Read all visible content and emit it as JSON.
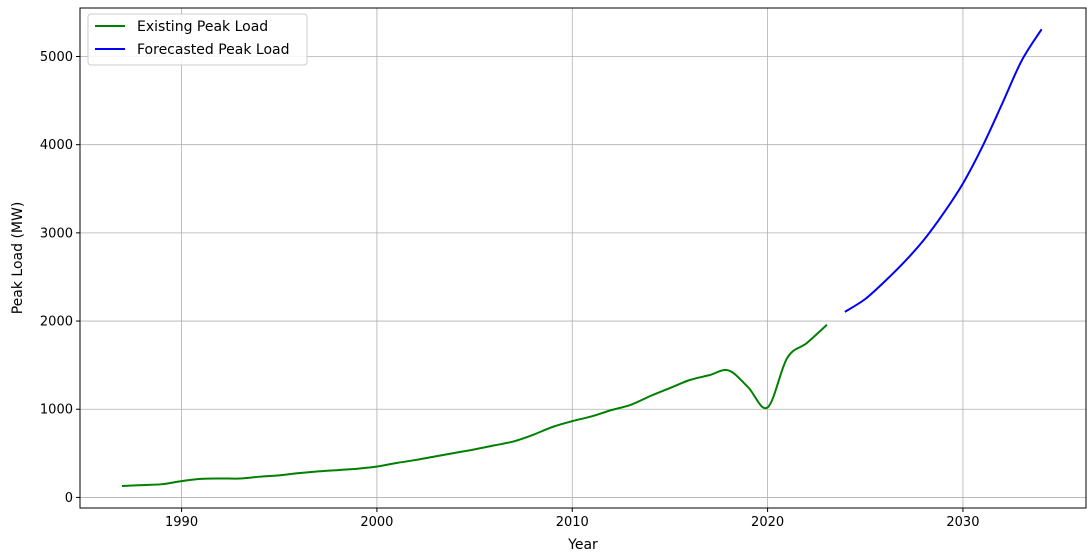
{
  "chart_data": {
    "type": "line",
    "title": "",
    "xlabel": "Year",
    "ylabel": "Peak Load (MW)",
    "xlim": [
      1984.8,
      1036.3
    ],
    "ylim": [
      -120,
      5550
    ],
    "xticks": [
      1990,
      2000,
      2010,
      2020,
      2030
    ],
    "yticks": [
      0,
      1000,
      2000,
      3000,
      4000,
      5000
    ],
    "grid": true,
    "legend_position": "top-left",
    "series": [
      {
        "name": "Existing Peak Load",
        "color": "#008000",
        "x": [
          1987,
          1988,
          1989,
          1990,
          1991,
          1992,
          1993,
          1994,
          1995,
          1996,
          1997,
          1998,
          1999,
          2000,
          2001,
          2002,
          2003,
          2004,
          2005,
          2006,
          2007,
          2008,
          2009,
          2010,
          2011,
          2012,
          2013,
          2014,
          2015,
          2016,
          2017,
          2018,
          2019,
          2020,
          2021,
          2022,
          2023
        ],
        "y": [
          130,
          140,
          150,
          185,
          210,
          215,
          215,
          235,
          250,
          275,
          295,
          310,
          325,
          350,
          390,
          425,
          465,
          505,
          545,
          590,
          635,
          710,
          800,
          865,
          920,
          990,
          1050,
          1150,
          1240,
          1330,
          1385,
          1440,
          1250,
          1020,
          1580,
          1750,
          1950
        ]
      },
      {
        "name": "Forecasted Peak Load",
        "color": "#0000ff",
        "x": [
          2024,
          2025,
          2026,
          2027,
          2028,
          2029,
          2030,
          2031,
          2032,
          2033,
          2034
        ],
        "y": [
          2110,
          2250,
          2450,
          2670,
          2920,
          3220,
          3560,
          3980,
          4460,
          4950,
          5300
        ]
      }
    ]
  }
}
